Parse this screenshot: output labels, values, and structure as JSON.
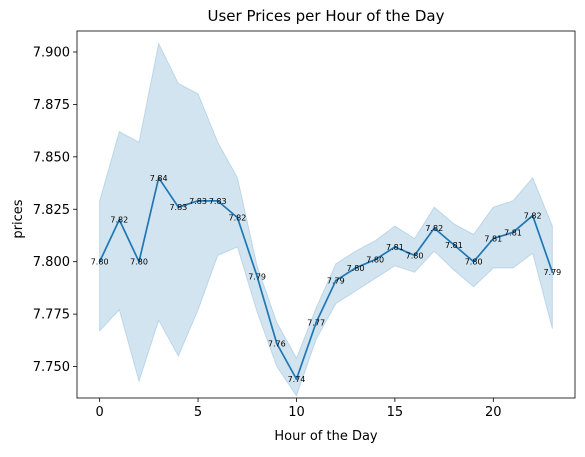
{
  "chart_data": {
    "type": "line",
    "title": "User Prices per Hour of the Day",
    "xlabel": "Hour of the Day",
    "ylabel": "prices",
    "xlim": [
      -1.15,
      24.15
    ],
    "ylim": [
      7.735,
      7.91
    ],
    "x_ticks": [
      0,
      5,
      10,
      15,
      20
    ],
    "y_ticks": [
      7.75,
      7.775,
      7.8,
      7.825,
      7.85,
      7.875,
      7.9
    ],
    "y_tick_labels": [
      "7.750",
      "7.775",
      "7.800",
      "7.825",
      "7.850",
      "7.875",
      "7.900"
    ],
    "grid": false,
    "line_color": "#1f77b4",
    "band_color": "#1f77b4",
    "x": [
      0,
      1,
      2,
      3,
      4,
      5,
      6,
      7,
      8,
      9,
      10,
      11,
      12,
      13,
      14,
      15,
      16,
      17,
      18,
      19,
      20,
      21,
      22,
      23
    ],
    "values": [
      7.8,
      7.82,
      7.8,
      7.84,
      7.826,
      7.829,
      7.829,
      7.821,
      7.793,
      7.761,
      7.744,
      7.771,
      7.791,
      7.797,
      7.801,
      7.807,
      7.803,
      7.816,
      7.808,
      7.8,
      7.811,
      7.814,
      7.822,
      7.795
    ],
    "band_upper": [
      7.829,
      7.862,
      7.857,
      7.904,
      7.885,
      7.88,
      7.857,
      7.84,
      7.798,
      7.771,
      7.754,
      7.778,
      7.799,
      7.805,
      7.81,
      7.817,
      7.811,
      7.826,
      7.818,
      7.813,
      7.826,
      7.829,
      7.84,
      7.817
    ],
    "band_lower": [
      7.767,
      7.777,
      7.743,
      7.772,
      7.755,
      7.777,
      7.803,
      7.807,
      7.776,
      7.75,
      7.736,
      7.763,
      7.78,
      7.786,
      7.792,
      7.798,
      7.795,
      7.805,
      7.796,
      7.788,
      7.797,
      7.797,
      7.804,
      7.768
    ],
    "data_labels": [
      "7.80",
      "7.82",
      "7.80",
      "7.84",
      "7.83",
      "7.83",
      "7.83",
      "7.82",
      "7.79",
      "7.76",
      "7.74",
      "7.77",
      "7.79",
      "7.80",
      "7.80",
      "7.81",
      "7.80",
      "7.82",
      "7.81",
      "7.80",
      "7.81",
      "7.81",
      "7.82",
      "7.79"
    ]
  }
}
